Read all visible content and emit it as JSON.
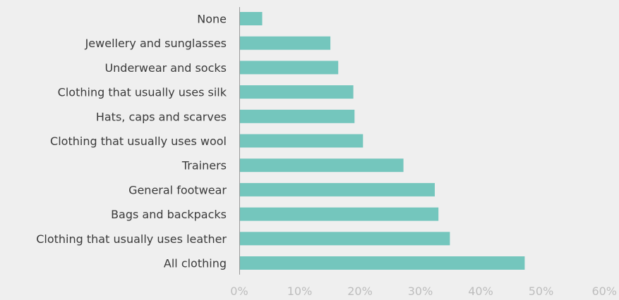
{
  "chart_data": {
    "type": "bar",
    "orientation": "horizontal",
    "categories": [
      "None",
      "Jewellery and sunglasses",
      "Underwear and socks",
      "Clothing that usually uses silk",
      "Hats, caps and scarves",
      "Clothing that usually uses wool",
      "Trainers",
      "General footwear",
      "Bags and backpacks",
      "Clothing that usually uses leather",
      "All clothing"
    ],
    "values": [
      3.8,
      15.1,
      16.4,
      18.9,
      19.1,
      20.5,
      27.2,
      32.4,
      33.0,
      34.9,
      47.3
    ],
    "xlim": [
      0,
      60
    ],
    "xticks": [
      0,
      10,
      20,
      30,
      40,
      50,
      60
    ],
    "xtick_labels": [
      "0%",
      "10%",
      "20%",
      "30%",
      "40%",
      "50%",
      "60%"
    ],
    "title": "",
    "xlabel": "",
    "ylabel": "",
    "grid": false,
    "legend": "none",
    "bar_color": "#74c6bd",
    "axis_color": "#9a9a9a",
    "label_color": "#3a3a3a",
    "tick_color": "#bdbdbd"
  }
}
